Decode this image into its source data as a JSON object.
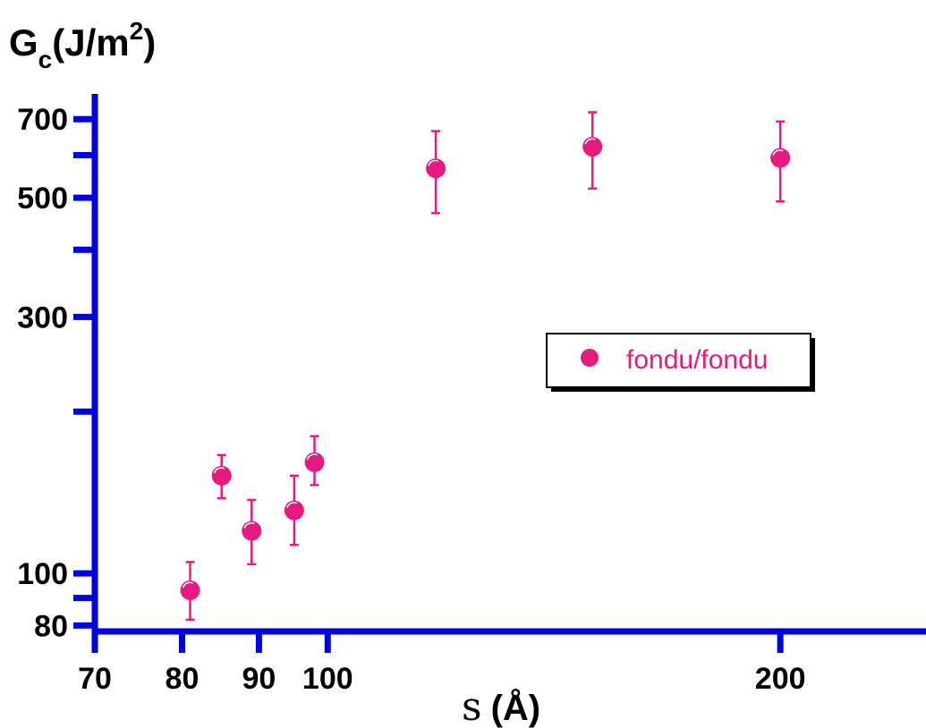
{
  "chart_data": {
    "type": "scatter",
    "x_scale": "log",
    "y_scale": "log",
    "xlim": [
      70,
      250
    ],
    "ylim": [
      78,
      780
    ],
    "x_ticks": [
      {
        "value": 70,
        "label": "70"
      },
      {
        "value": 80,
        "label": "80"
      },
      {
        "value": 90,
        "label": "90"
      },
      {
        "value": 100,
        "label": "100"
      },
      {
        "value": 200,
        "label": "200"
      }
    ],
    "y_ticks_labeled": [
      {
        "value": 80,
        "label": "80"
      },
      {
        "value": 100,
        "label": "100"
      },
      {
        "value": 300,
        "label": "300"
      },
      {
        "value": 500,
        "label": "500"
      },
      {
        "value": 700,
        "label": "700"
      }
    ],
    "y_ticks_minor": [
      90,
      200,
      400,
      600
    ],
    "ylabel": {
      "main": "G",
      "sub": "c",
      "unit_open": "(J/m",
      "unit_sup": "2",
      "unit_close": ")"
    },
    "xlabel": {
      "symbol": "s",
      "unit": "(Å)"
    },
    "grid": false,
    "legend": {
      "placement": "center-right",
      "entries": [
        "fondu/fondu"
      ]
    },
    "series": [
      {
        "name": "fondu/fondu",
        "color": "#e6197f",
        "marker": "circle",
        "points": [
          {
            "x": 81,
            "y": 93,
            "y_low": 82,
            "y_high": 105
          },
          {
            "x": 85,
            "y": 152,
            "y_low": 138,
            "y_high": 166
          },
          {
            "x": 89,
            "y": 120,
            "y_low": 104,
            "y_high": 137
          },
          {
            "x": 95,
            "y": 131,
            "y_low": 113,
            "y_high": 152
          },
          {
            "x": 98,
            "y": 161,
            "y_low": 146,
            "y_high": 180
          },
          {
            "x": 118,
            "y": 567,
            "y_low": 468,
            "y_high": 665
          },
          {
            "x": 150,
            "y": 622,
            "y_low": 520,
            "y_high": 721
          },
          {
            "x": 200,
            "y": 593,
            "y_low": 492,
            "y_high": 693
          }
        ]
      }
    ]
  },
  "colors": {
    "axis": "#0000e0",
    "marker": "#e6197f",
    "text": "#000000",
    "legend_border": "#000000",
    "legend_shadow": "#000000"
  }
}
